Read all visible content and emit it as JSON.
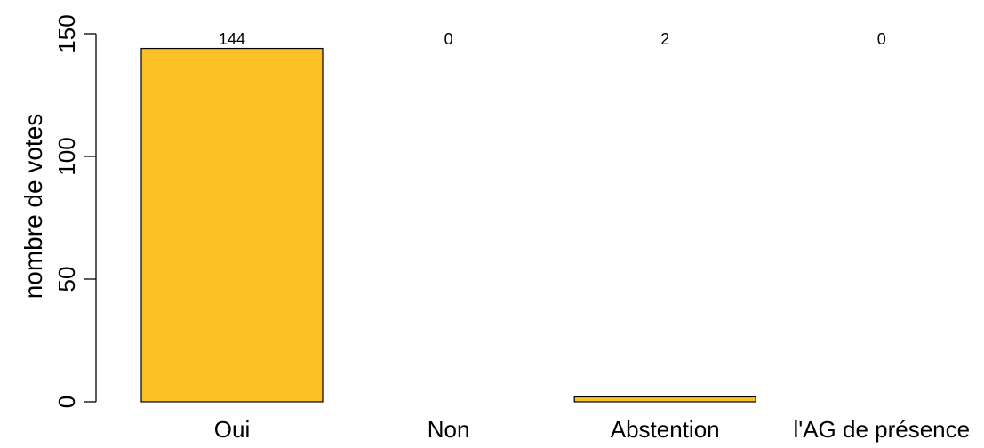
{
  "chart_data": {
    "type": "bar",
    "title": "",
    "xlabel": "",
    "ylabel": "nombre de votes",
    "categories": [
      "Oui",
      "Non",
      "Abstention",
      "l'AG de présence"
    ],
    "values": [
      144,
      0,
      2,
      0
    ],
    "value_labels": [
      "144",
      "0",
      "2",
      "0"
    ],
    "ylim": [
      0,
      150
    ],
    "yticks": [
      0,
      50,
      100,
      150
    ],
    "ytick_labels": [
      "0",
      "50",
      "100",
      "150"
    ],
    "grid": false,
    "legend": "none",
    "bar_color": "#FCBF26",
    "bar_edge_color": "#000000"
  }
}
